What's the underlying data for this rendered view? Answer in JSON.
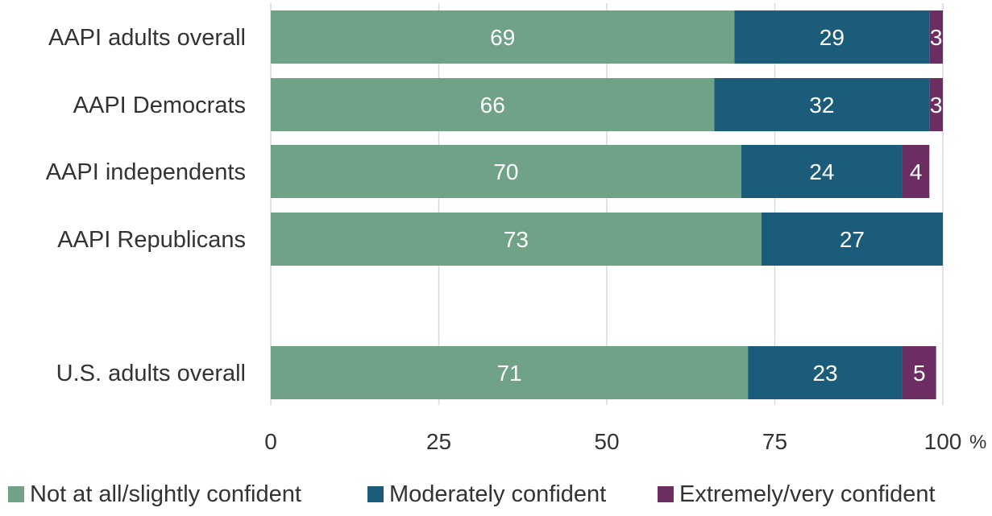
{
  "chart_data": {
    "type": "bar",
    "orientation": "horizontal",
    "stacked": true,
    "categories": [
      "AAPI adults overall",
      "AAPI Democrats",
      "AAPI independents",
      "AAPI Republicans",
      "",
      "U.S. adults overall"
    ],
    "series": [
      {
        "name": "Not at all/slightly confident",
        "color": "#6fa287",
        "values": [
          69,
          66,
          70,
          73,
          null,
          71
        ]
      },
      {
        "name": "Moderately confident",
        "color": "#1a5c7a",
        "values": [
          29,
          32,
          24,
          27,
          null,
          23
        ]
      },
      {
        "name": "Extremely/very confident",
        "color": "#6b2d62",
        "values": [
          3,
          3,
          4,
          0,
          null,
          5
        ]
      }
    ],
    "xlim": [
      0,
      100
    ],
    "xticks": [
      0,
      25,
      50,
      75,
      100
    ],
    "tick_labels": [
      "0",
      "25",
      "50",
      "75",
      "100"
    ],
    "x_unit": "%",
    "grid": true,
    "legend_position": "bottom"
  }
}
